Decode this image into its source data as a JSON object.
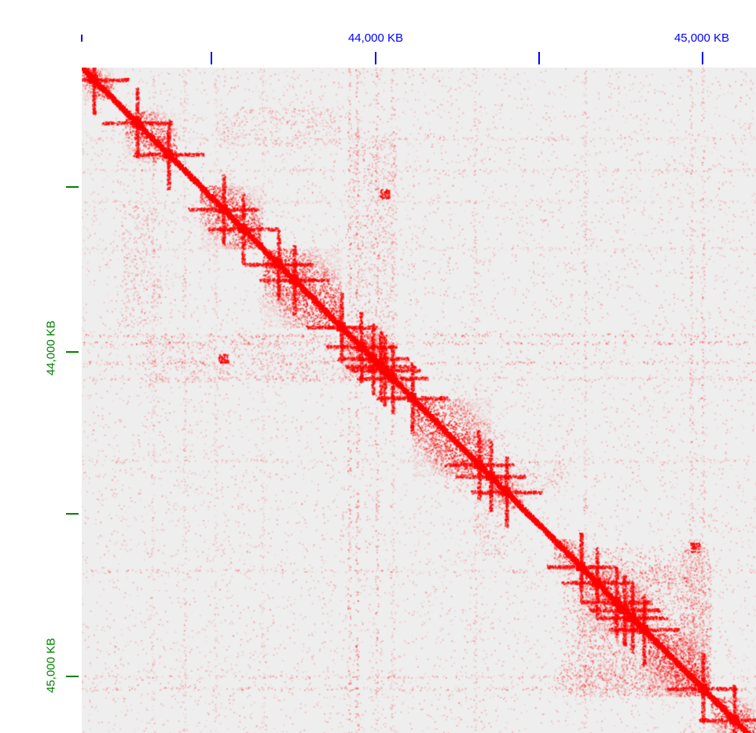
{
  "x_axis": {
    "color": "#0000ff",
    "labels": [
      "44,000 KB",
      "45,000 KB"
    ]
  },
  "y_axis": {
    "color": "#008000",
    "labels": [
      "44,000 KB",
      "45,000 KB"
    ]
  },
  "contact_map": {
    "background_color": "#eeeeee",
    "signal_color": "#ff0000"
  }
}
